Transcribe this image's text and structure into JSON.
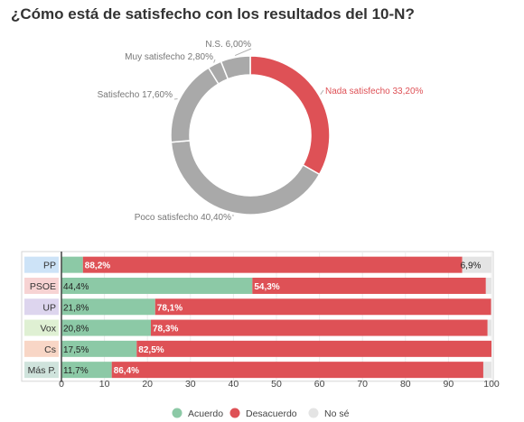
{
  "title": "¿Cómo está de satisfecho con los resultados del 10-N?",
  "colors": {
    "acuerdo": "#8cc9a6",
    "desacuerdo": "#de5156",
    "nose": "#e4e4e4",
    "donut_gray": "#a9a9a9",
    "text": "#333333"
  },
  "chart_data": [
    {
      "type": "pie",
      "variant": "donut",
      "slices": [
        {
          "label": "Nada satisfecho",
          "value": 33.2,
          "text": "Nada satisfecho 33,20%",
          "color": "#de5156"
        },
        {
          "label": "Poco satisfecho",
          "value": 40.4,
          "text": "Poco satisfecho 40,40%",
          "color": "#a9a9a9"
        },
        {
          "label": "Satisfecho",
          "value": 17.6,
          "text": "Satisfecho 17,60%",
          "color": "#a9a9a9"
        },
        {
          "label": "Muy satisfecho",
          "value": 2.8,
          "text": "Muy satisfecho 2,80%",
          "color": "#a9a9a9"
        },
        {
          "label": "N.S.",
          "value": 6.0,
          "text": "N.S. 6,00%",
          "color": "#a9a9a9"
        }
      ]
    },
    {
      "type": "bar",
      "orientation": "horizontal",
      "stacked": true,
      "categories": [
        {
          "label": "PP",
          "bg": "#cde3f7"
        },
        {
          "label": "PSOE",
          "bg": "#f7d3d3"
        },
        {
          "label": "UP",
          "bg": "#ddd5ee"
        },
        {
          "label": "Vox",
          "bg": "#dff0d3"
        },
        {
          "label": "Cs",
          "bg": "#f8d6c6"
        },
        {
          "label": "Más P.",
          "bg": "#cfe3dc"
        }
      ],
      "series": [
        {
          "name": "Acuerdo",
          "color": "#8cc9a6",
          "values": [
            5.0,
            44.4,
            21.8,
            20.8,
            17.5,
            11.7
          ],
          "labels": [
            "",
            "44,4%",
            "21,8%",
            "20,8%",
            "17,5%",
            "11,7%"
          ]
        },
        {
          "name": "Desacuerdo",
          "color": "#de5156",
          "values": [
            88.2,
            54.3,
            78.1,
            78.3,
            82.5,
            86.4
          ],
          "labels": [
            "88,2%",
            "54,3%",
            "78,1%",
            "78,3%",
            "82,5%",
            "86,4%"
          ]
        },
        {
          "name": "No sé",
          "color": "#e4e4e4",
          "values": [
            6.9,
            1.3,
            0.1,
            0.9,
            0.0,
            1.9
          ],
          "labels": [
            "6,9%",
            "",
            "",
            "",
            "",
            ""
          ]
        }
      ],
      "xlim": [
        0,
        100
      ],
      "xticks": [
        "0",
        "10",
        "20",
        "30",
        "40",
        "50",
        "60",
        "70",
        "80",
        "90",
        "100"
      ],
      "legend": {
        "position": "bottom",
        "items": [
          "Acuerdo",
          "Desacuerdo",
          "No sé"
        ]
      }
    }
  ]
}
